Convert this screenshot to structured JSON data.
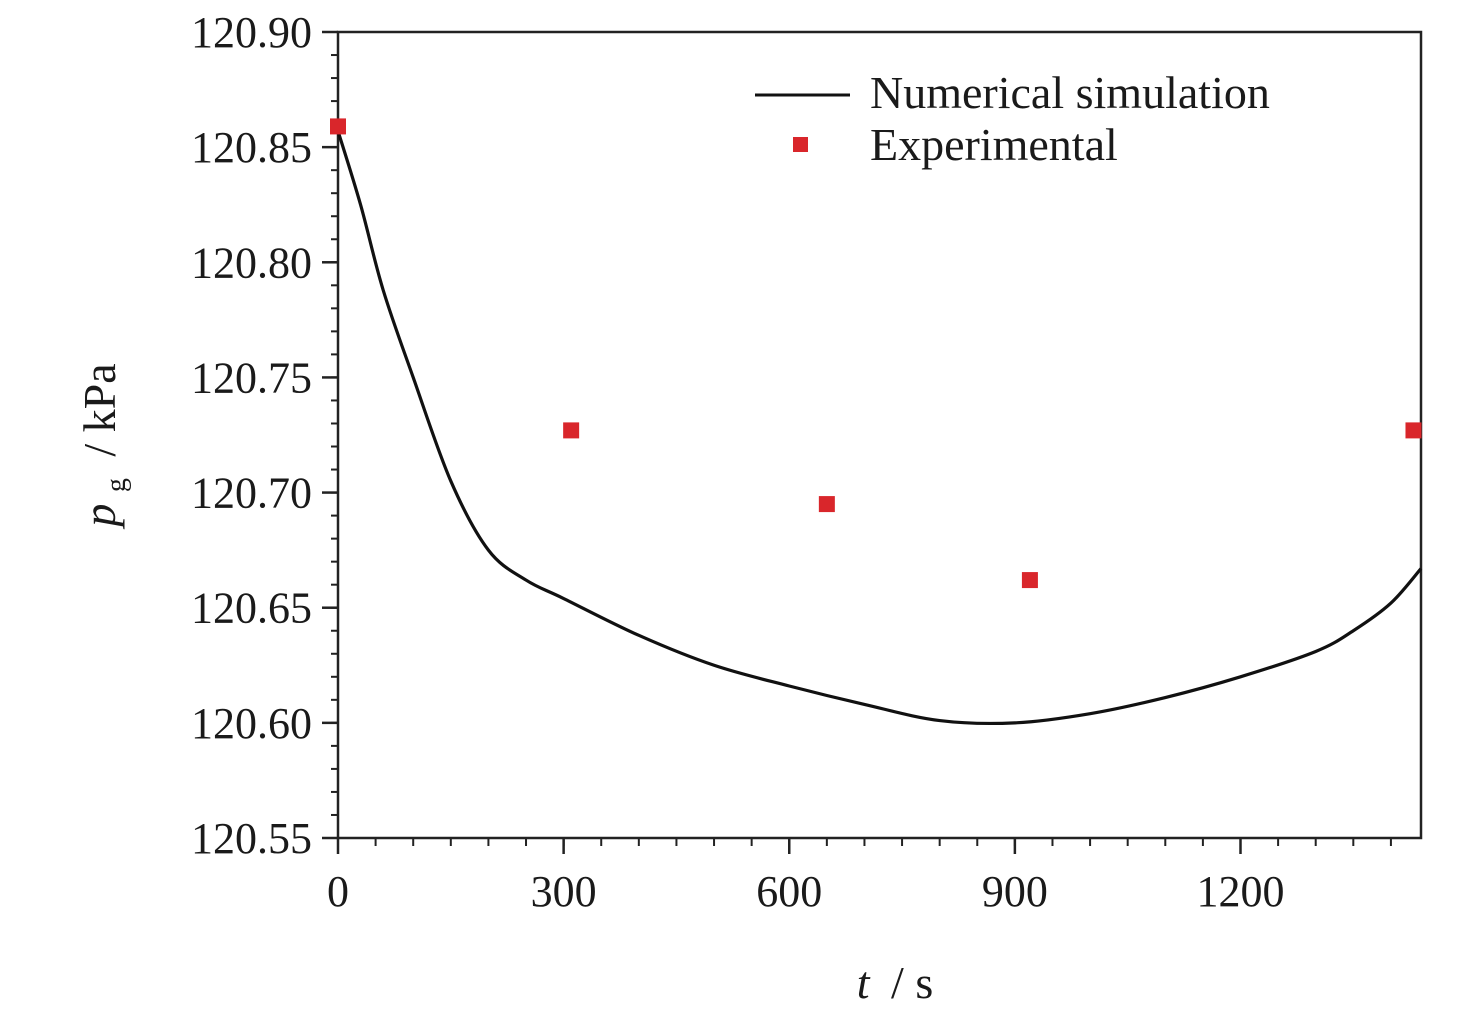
{
  "chart_data": {
    "type": "line",
    "title": "",
    "xlabel": {
      "var": "t",
      "unit": "/ s"
    },
    "ylabel": {
      "var": "p",
      "sub": "g",
      "unit": "/ kPa"
    },
    "xlim": [
      0,
      1440
    ],
    "ylim": [
      120.55,
      120.9
    ],
    "x_ticks": [
      0,
      300,
      600,
      900,
      1200
    ],
    "x_tick_labels": [
      "0",
      "300",
      "600",
      "900",
      "1200"
    ],
    "y_ticks": [
      120.55,
      120.6,
      120.65,
      120.7,
      120.75,
      120.8,
      120.85,
      120.9
    ],
    "y_tick_labels": [
      "120.55",
      "120.60",
      "120.65",
      "120.70",
      "120.75",
      "120.80",
      "120.85",
      "120.90"
    ],
    "grid": false,
    "legend_position": "top-right",
    "series": [
      {
        "name": "Numerical simulation",
        "kind": "line",
        "color": "#111111",
        "x": [
          0,
          30,
          60,
          100,
          150,
          200,
          250,
          300,
          400,
          500,
          600,
          700,
          800,
          900,
          1000,
          1100,
          1200,
          1300,
          1350,
          1400,
          1440
        ],
        "y": [
          120.857,
          120.825,
          120.788,
          120.75,
          120.705,
          120.675,
          120.662,
          120.654,
          120.638,
          120.625,
          120.616,
          120.608,
          120.601,
          120.6,
          120.604,
          120.611,
          120.62,
          120.631,
          120.64,
          120.652,
          120.667
        ]
      },
      {
        "name": "Experimental",
        "kind": "scatter",
        "color": "#d9262b",
        "x": [
          0,
          310,
          650,
          920,
          1430
        ],
        "y": [
          120.859,
          120.727,
          120.695,
          120.662,
          120.727
        ]
      }
    ]
  }
}
